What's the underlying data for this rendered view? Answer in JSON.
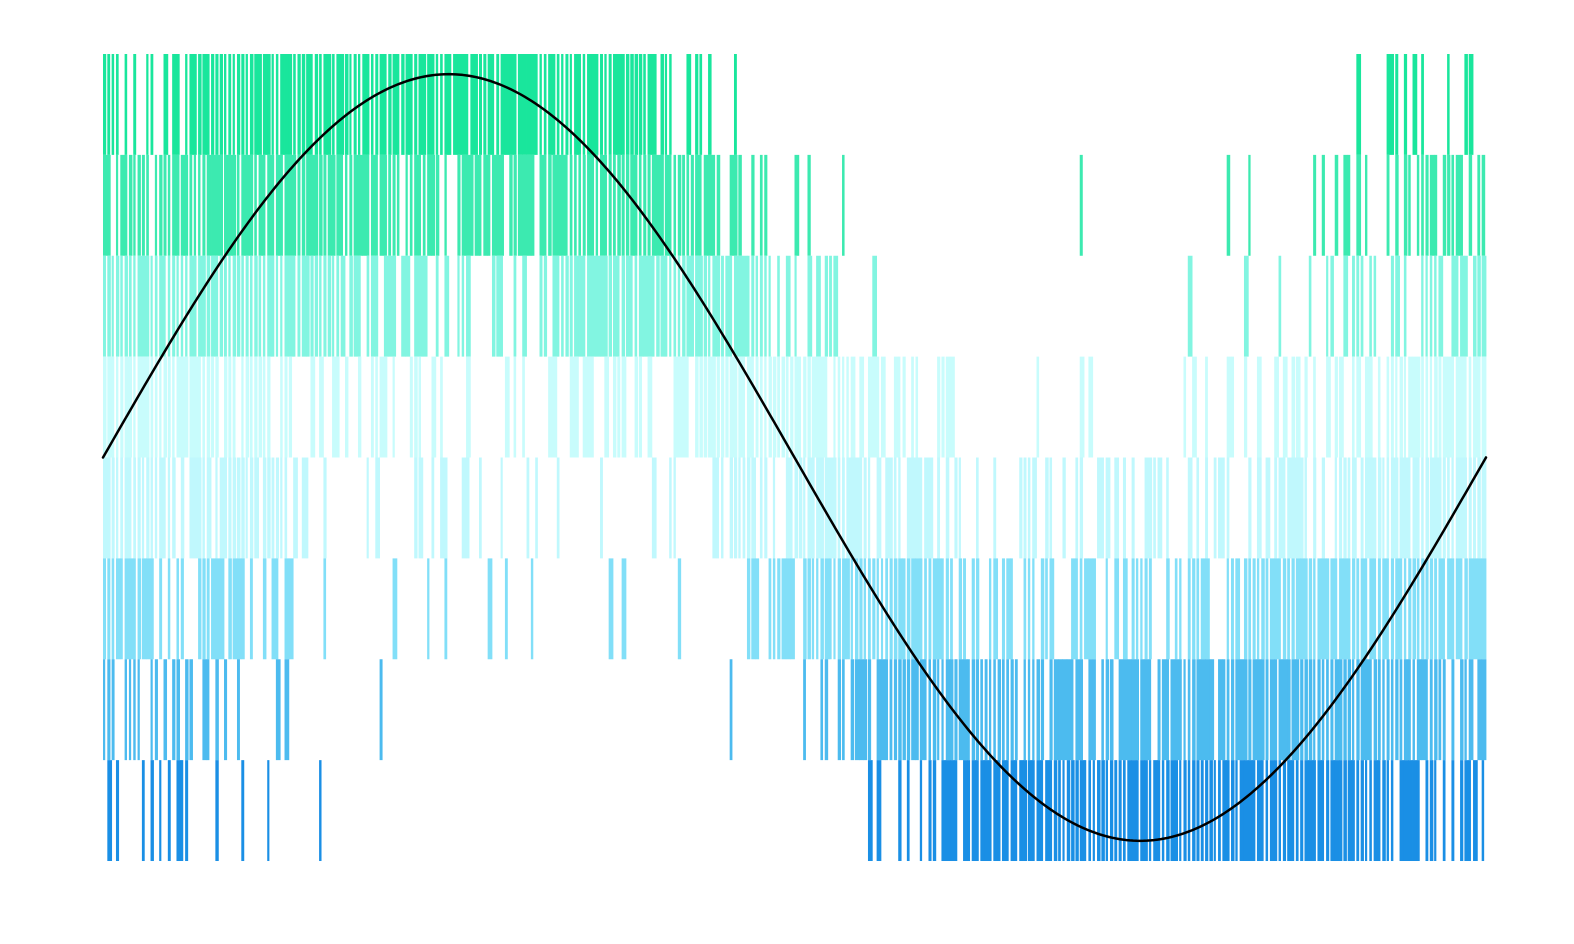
{
  "chart_data": {
    "type": "heatmap",
    "title": "",
    "xlabel": "",
    "ylabel": "",
    "axes_visible": false,
    "grid": false,
    "xlim": [
      0,
      6.2832
    ],
    "ylim": [
      -1,
      1
    ],
    "rows": [
      {
        "level": 0.875,
        "color": "#19e69c"
      },
      {
        "level": 0.625,
        "color": "#3ceab0"
      },
      {
        "level": 0.375,
        "color": "#82f5e1"
      },
      {
        "level": 0.125,
        "color": "#c8fcfc"
      },
      {
        "level": -0.125,
        "color": "#c0f8fd"
      },
      {
        "level": -0.375,
        "color": "#82dff8"
      },
      {
        "level": -0.625,
        "color": "#4cbbef"
      },
      {
        "level": -0.875,
        "color": "#1a8fe5"
      }
    ],
    "band_height": 0.25,
    "stripe_count": 320,
    "series": [
      {
        "type": "line",
        "function": "sin(x)",
        "color": "#000000",
        "x_range": [
          0,
          6.2832
        ],
        "amplitude": 0.95
      }
    ]
  }
}
